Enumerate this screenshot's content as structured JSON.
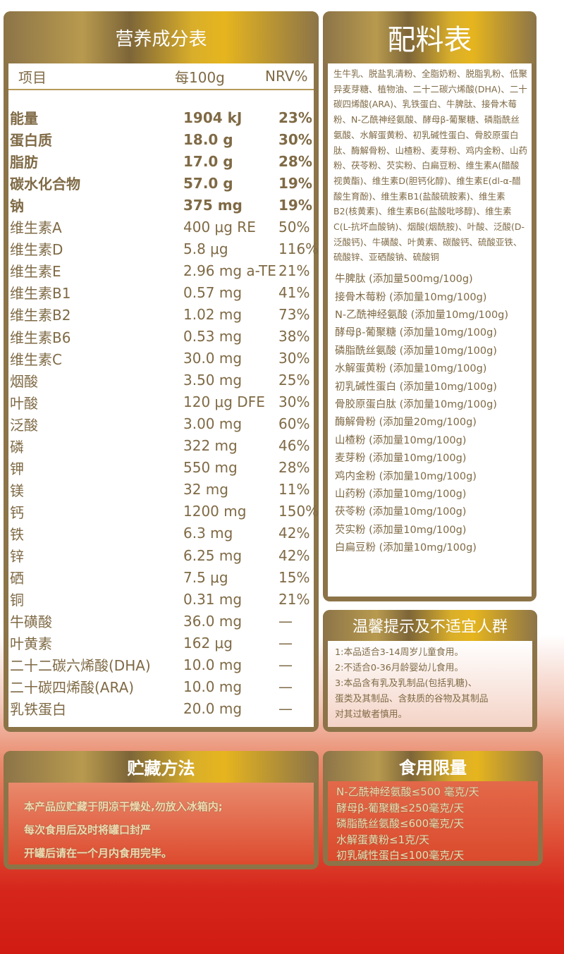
{
  "nutrition": {
    "title": "营养成分表",
    "headers": [
      "项目",
      "每100g",
      "NRV%"
    ],
    "rows": [
      [
        "能量",
        "1904 kJ",
        "23%"
      ],
      [
        "蛋白质",
        "18.0 g",
        "30%"
      ],
      [
        "脂肪",
        "17.0 g",
        "28%"
      ],
      [
        "碳水化合物",
        "57.0 g",
        "19%"
      ],
      [
        "钠",
        "375 mg",
        "19%"
      ],
      [
        "维生素A",
        "400 μg RE",
        "50%"
      ],
      [
        "维生素D",
        "5.8 μg",
        "116%"
      ],
      [
        "维生素E",
        "2.96 mg a-TE",
        "21%"
      ],
      [
        "维生素B1",
        "0.57 mg",
        "41%"
      ],
      [
        "维生素B2",
        "1.02 mg",
        "73%"
      ],
      [
        "维生素B6",
        "0.53 mg",
        "38%"
      ],
      [
        "维生素C",
        "30.0 mg",
        "30%"
      ],
      [
        "烟酸",
        "3.50 mg",
        "25%"
      ],
      [
        "叶酸",
        "120 μg DFE",
        "30%"
      ],
      [
        "泛酸",
        "3.00 mg",
        "60%"
      ],
      [
        "磷",
        "322 mg",
        "46%"
      ],
      [
        "钾",
        "550 mg",
        "28%"
      ],
      [
        "镁",
        "32 mg",
        "11%"
      ],
      [
        "钙",
        "1200 mg",
        "150%"
      ],
      [
        "铁",
        "6.3 mg",
        "42%"
      ],
      [
        "锌",
        "6.25 mg",
        "42%"
      ],
      [
        "硒",
        "7.5 μg",
        "15%"
      ],
      [
        "铜",
        "0.31 mg",
        "21%"
      ],
      [
        "牛磺酸",
        "36.0 mg",
        "—"
      ],
      [
        "叶黄素",
        "162 μg",
        "—"
      ],
      [
        "二十二碳六烯酸(DHA)",
        "10.0 mg",
        "—"
      ],
      [
        "二十碳四烯酸(ARA)",
        "10.0 mg",
        "—"
      ],
      [
        "乳铁蛋白",
        "20.0 mg",
        "—"
      ]
    ]
  },
  "ingredients": {
    "title": "配料表",
    "text": "生牛乳、脱盐乳清粉、全脂奶粉、脱脂乳粉、低聚异麦芽糖、植物油、二十二碳六烯酸(DHA)、二十碳四烯酸(ARA)、乳铁蛋白、牛脾肽、接骨木莓粉、N-乙酰神经氨酸、酵母β-葡聚糖、磷脂酰丝氨酸、水解蛋黄粉、初乳碱性蛋白、骨胶原蛋白肽、酶解骨粉、山楂粉、麦芽粉、鸡内金粉、山药粉、茯苓粉、芡实粉、白扁豆粉、维生素A(醋酸视黄酯)、维生素D(胆钙化醇)、维生素E(dl-α-醋酸生育酚)、维生素B1(盐酸硫胺素)、维生素B2(核黄素)、维生素B6(盐酸吡哆醇)、维生素C(L-抗坏血酸钠)、烟酸(烟酰胺)、叶酸、泛酸(D-泛酸钙)、牛磺酸、叶黄素、碳酸钙、硫酸亚铁、硫酸锌、亚硒酸钠、硫酸铜",
    "additions": [
      "牛脾肽 (添加量500mg/100g)",
      "接骨木莓粉 (添加量10mg/100g)",
      "N-乙酰神经氨酸 (添加量10mg/100g)",
      "酵母β-葡聚糖 (添加量10mg/100g)",
      "磷脂酰丝氨酸 (添加量10mg/100g)",
      "水解蛋黄粉 (添加量10mg/100g)",
      "初乳碱性蛋白 (添加量10mg/100g)",
      "骨胶原蛋白肽 (添加量10mg/100g)",
      "酶解骨粉 (添加量20mg/100g)",
      "山楂粉 (添加量10mg/100g)",
      "麦芽粉 (添加量10mg/100g)",
      "鸡内金粉 (添加量10mg/100g)",
      "山药粉 (添加量10mg/100g)",
      "茯苓粉 (添加量10mg/100g)",
      "芡实粉 (添加量10mg/100g)",
      "白扁豆粉 (添加量10mg/100g)"
    ]
  },
  "warnings": {
    "title": "温馨提示及不适宜人群",
    "lines": [
      "1:本品适合3-14周岁儿童食用。",
      "2:不适合0-36月龄婴幼儿食用。",
      "3:本品含有乳及乳制品(包括乳糖)、",
      "蛋类及其制品、含麸质的谷物及其制品",
      "对其过敏者慎用。"
    ]
  },
  "storage": {
    "title": "贮藏方法",
    "lines": [
      "本产品应贮藏于阴凉干燥处,勿放入冰箱内;",
      "每次食用后及时将罐口封严",
      "开罐后请在一个月内食用完毕。"
    ]
  },
  "limits": {
    "title": "食用限量",
    "lines": [
      "N-乙酰神经氨酸≤500 毫克/天",
      "酵母β-葡聚糖≤250毫克/天",
      "磷脂酰丝氨酸≤600毫克/天",
      "水解蛋黄粉≤1克/天",
      "初乳碱性蛋白≤100毫克/天"
    ]
  },
  "colors": {
    "gold_border": "#8c7448",
    "text_brown": "#7f6a45",
    "red": "#d01b12"
  }
}
